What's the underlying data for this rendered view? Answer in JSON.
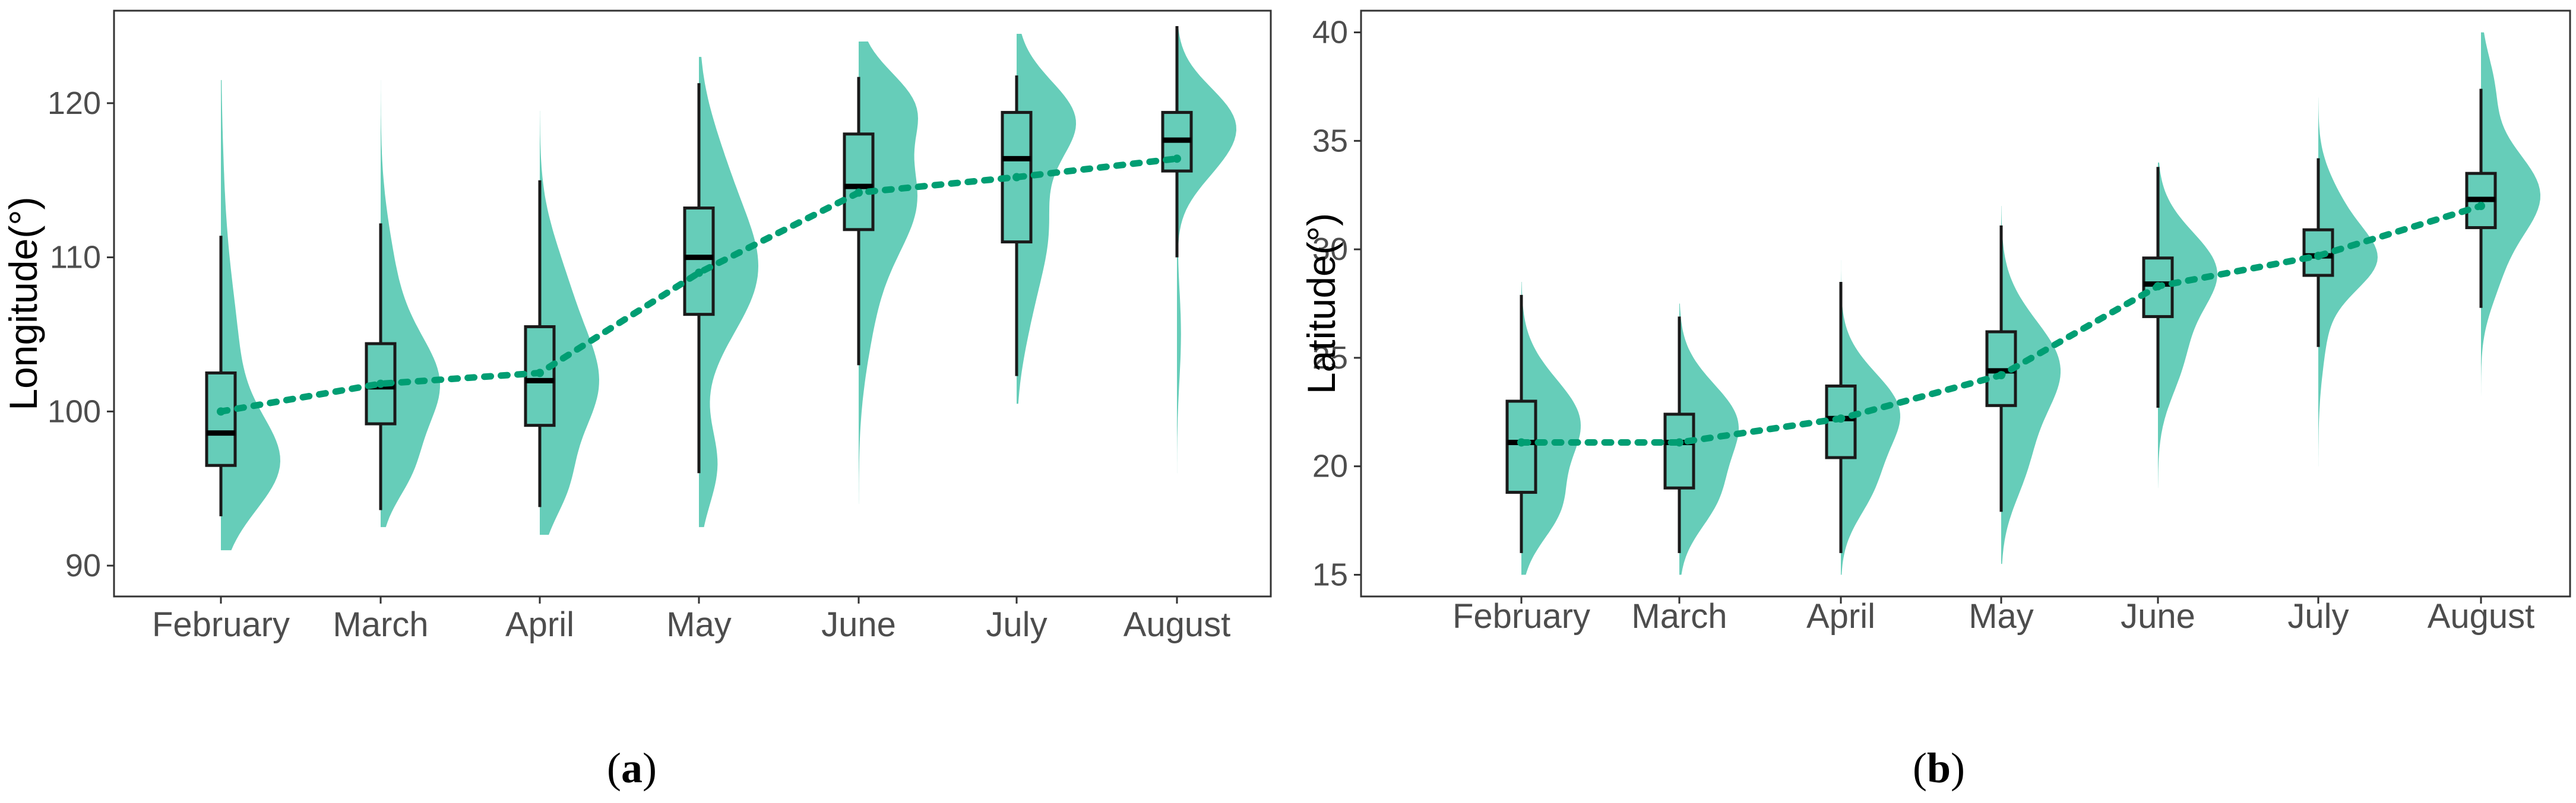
{
  "chart_data": [
    {
      "type": "raincloud",
      "panel_label_open": "(",
      "panel_label_letter": "a",
      "panel_label_close": ")",
      "ylabel": "Longitude(°)",
      "ylim": [
        88,
        126
      ],
      "yticks": [
        90,
        100,
        110,
        120
      ],
      "categories": [
        "February",
        "March",
        "April",
        "May",
        "June",
        "July",
        "August"
      ],
      "series": [
        {
          "boxes": [
            {
              "min": 93.2,
              "q1": 96.5,
              "median": 98.6,
              "q3": 102.5,
              "max": 111.4
            },
            {
              "min": 93.6,
              "q1": 99.2,
              "median": 101.6,
              "q3": 104.4,
              "max": 112.2
            },
            {
              "min": 93.8,
              "q1": 99.1,
              "median": 102.0,
              "q3": 105.5,
              "max": 115.0
            },
            {
              "min": 96.0,
              "q1": 106.3,
              "median": 110.0,
              "q3": 113.2,
              "max": 121.3
            },
            {
              "min": 103.0,
              "q1": 111.8,
              "median": 114.6,
              "q3": 118.0,
              "max": 121.7
            },
            {
              "min": 102.3,
              "q1": 111.0,
              "median": 116.4,
              "q3": 119.4,
              "max": 121.8
            },
            {
              "min": 110.0,
              "q1": 115.6,
              "median": 117.6,
              "q3": 119.4,
              "max": 125.0
            }
          ],
          "means": [
            100.0,
            101.8,
            102.5,
            109.0,
            114.2,
            115.2,
            116.4
          ],
          "densities": [
            {
              "range": [
                91.0,
                121.5
              ],
              "peaks": [
                [
                  96.5,
                  1.0,
                  3.0
                ],
                [
                  103.0,
                  0.28,
                  4.5
                ],
                [
                  110.0,
                  0.08,
                  6.0
                ]
              ]
            },
            {
              "range": [
                92.5,
                121.5
              ],
              "peaks": [
                [
                  101.5,
                  1.0,
                  3.2
                ],
                [
                  96.0,
                  0.35,
                  2.0
                ],
                [
                  108.0,
                  0.25,
                  4.0
                ]
              ]
            },
            {
              "range": [
                92.0,
                119.5
              ],
              "peaks": [
                [
                  101.5,
                  1.0,
                  3.5
                ],
                [
                  95.0,
                  0.35,
                  2.2
                ],
                [
                  108.0,
                  0.4,
                  3.5
                ]
              ]
            },
            {
              "range": [
                92.5,
                123.0
              ],
              "peaks": [
                [
                  109.0,
                  1.0,
                  4.0
                ],
                [
                  96.5,
                  0.32,
                  2.5
                ],
                [
                  116.0,
                  0.3,
                  3.5
                ]
              ]
            },
            {
              "range": [
                94.0,
                124.0
              ],
              "peaks": [
                [
                  114.0,
                  1.0,
                  3.5
                ],
                [
                  120.0,
                  0.8,
                  2.2
                ],
                [
                  107.0,
                  0.25,
                  4.0
                ]
              ]
            },
            {
              "range": [
                100.5,
                124.5
              ],
              "peaks": [
                [
                  119.0,
                  1.0,
                  2.5
                ],
                [
                  112.0,
                  0.55,
                  3.5
                ],
                [
                  106.0,
                  0.15,
                  3.0
                ]
              ]
            },
            {
              "range": [
                96.0,
                125.0
              ],
              "peaks": [
                [
                  119.0,
                  1.0,
                  2.2
                ],
                [
                  116.0,
                  0.45,
                  2.0
                ],
                [
                  105.0,
                  0.08,
                  3.0
                ]
              ]
            }
          ]
        }
      ]
    },
    {
      "type": "raincloud",
      "panel_label_open": "(",
      "panel_label_letter": "b",
      "panel_label_close": ")",
      "ylabel": "Latitude(°)",
      "ylim": [
        14,
        41
      ],
      "yticks": [
        15,
        20,
        25,
        30,
        35,
        40
      ],
      "categories": [
        "February",
        "March",
        "April",
        "May",
        "June",
        "July",
        "August"
      ],
      "series": [
        {
          "boxes": [
            {
              "min": 16.0,
              "q1": 18.8,
              "median": 21.1,
              "q3": 23.0,
              "max": 27.9
            },
            {
              "min": 16.0,
              "q1": 19.0,
              "median": 21.1,
              "q3": 22.4,
              "max": 26.9
            },
            {
              "min": 16.0,
              "q1": 20.4,
              "median": 22.2,
              "q3": 23.7,
              "max": 28.5
            },
            {
              "min": 17.9,
              "q1": 22.8,
              "median": 24.4,
              "q3": 26.2,
              "max": 31.1
            },
            {
              "min": 22.7,
              "q1": 26.9,
              "median": 28.4,
              "q3": 29.6,
              "max": 33.8
            },
            {
              "min": 25.5,
              "q1": 28.8,
              "median": 29.7,
              "q3": 30.9,
              "max": 34.2
            },
            {
              "min": 27.3,
              "q1": 31.0,
              "median": 32.3,
              "q3": 33.5,
              "max": 37.4
            }
          ],
          "means": [
            21.1,
            21.1,
            22.2,
            24.2,
            28.3,
            29.7,
            32.0
          ],
          "densities": [
            {
              "range": [
                15.0,
                28.5
              ],
              "peaks": [
                [
                  22.0,
                  1.0,
                  2.0
                ],
                [
                  18.0,
                  0.55,
                  1.5
                ]
              ]
            },
            {
              "range": [
                15.0,
                27.5
              ],
              "peaks": [
                [
                  22.0,
                  1.0,
                  1.8
                ],
                [
                  18.5,
                  0.55,
                  1.5
                ]
              ]
            },
            {
              "range": [
                15.0,
                29.5
              ],
              "peaks": [
                [
                  22.5,
                  1.0,
                  1.8
                ],
                [
                  19.0,
                  0.45,
                  1.5
                ]
              ]
            },
            {
              "range": [
                15.5,
                32.0
              ],
              "peaks": [
                [
                  24.5,
                  1.0,
                  2.2
                ],
                [
                  20.0,
                  0.35,
                  1.8
                ]
              ]
            },
            {
              "range": [
                19.0,
                34.0
              ],
              "peaks": [
                [
                  29.0,
                  1.0,
                  1.8
                ],
                [
                  25.0,
                  0.4,
                  1.8
                ]
              ]
            },
            {
              "range": [
                20.0,
                37.0
              ],
              "peaks": [
                [
                  29.5,
                  1.0,
                  1.4
                ],
                [
                  32.0,
                  0.35,
                  1.5
                ],
                [
                  26.5,
                  0.15,
                  2.0
                ]
              ]
            },
            {
              "range": [
                19.0,
                40.0
              ],
              "peaks": [
                [
                  32.5,
                  1.0,
                  2.0
                ],
                [
                  37.5,
                  0.2,
                  1.5
                ],
                [
                  28.5,
                  0.2,
                  1.5
                ]
              ]
            }
          ]
        }
      ]
    }
  ],
  "colors": {
    "violin": "#66cdb9",
    "box_fill": "#66cdb9",
    "box_stroke": "#1a1a1a",
    "mean_line": "#009e73",
    "axis": "#333333"
  }
}
